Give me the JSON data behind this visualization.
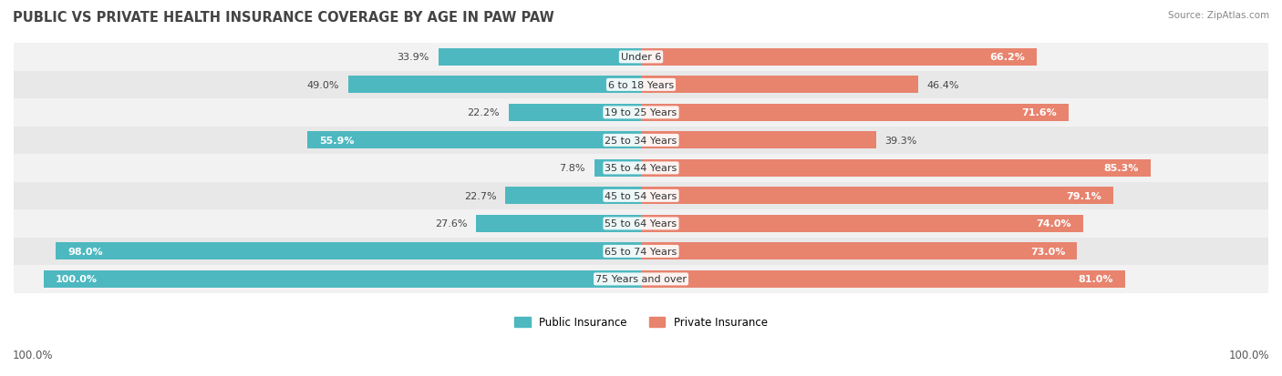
{
  "title": "PUBLIC VS PRIVATE HEALTH INSURANCE COVERAGE BY AGE IN PAW PAW",
  "source": "Source: ZipAtlas.com",
  "categories": [
    "Under 6",
    "6 to 18 Years",
    "19 to 25 Years",
    "25 to 34 Years",
    "35 to 44 Years",
    "45 to 54 Years",
    "55 to 64 Years",
    "65 to 74 Years",
    "75 Years and over"
  ],
  "public_values": [
    33.9,
    49.0,
    22.2,
    55.9,
    7.8,
    22.7,
    27.6,
    98.0,
    100.0
  ],
  "private_values": [
    66.2,
    46.4,
    71.6,
    39.3,
    85.3,
    79.1,
    74.0,
    73.0,
    81.0
  ],
  "public_color": "#4db8c0",
  "private_color": "#e8836e",
  "public_label": "Public Insurance",
  "private_label": "Private Insurance",
  "row_bg_odd": "#f2f2f2",
  "row_bg_even": "#e8e8e8",
  "title_fontsize": 10.5,
  "value_fontsize": 8.0,
  "category_fontsize": 8.0,
  "axis_label_left": "100.0%",
  "axis_label_right": "100.0%"
}
